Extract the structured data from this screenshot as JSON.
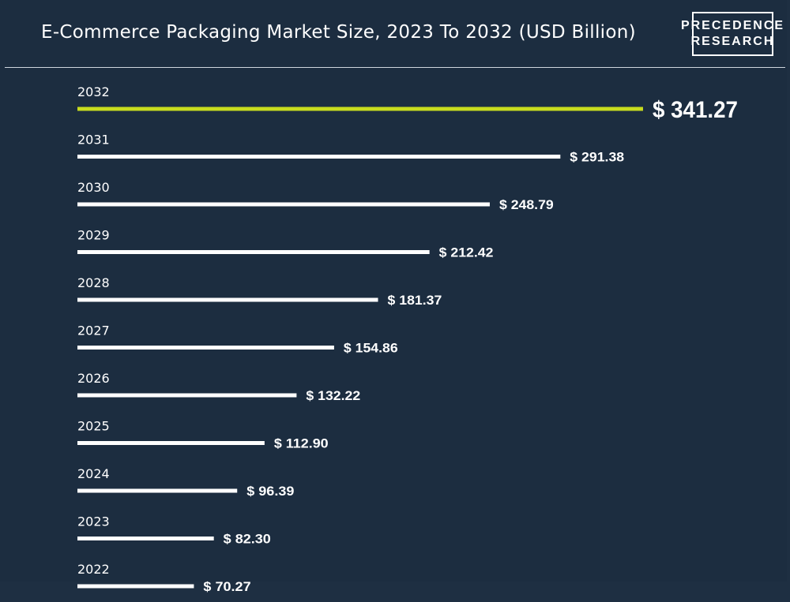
{
  "title": "E-Commerce Packaging Market Size, 2023 To 2032 (USD Billion)",
  "logo": {
    "line1": "PRECEDENCE",
    "line2": "RESEARCH"
  },
  "colors": {
    "background": "#1c2d40",
    "bar": "#ffffff",
    "highlight_bar": "#c8dc1e",
    "text": "#ffffff"
  },
  "chart_data": {
    "type": "bar",
    "orientation": "horizontal",
    "title": "E-Commerce Packaging Market Size, 2023 To 2032 (USD Billion)",
    "categories": [
      "2032",
      "2031",
      "2030",
      "2029",
      "2028",
      "2027",
      "2026",
      "2025",
      "2024",
      "2023",
      "2022"
    ],
    "values": [
      341.27,
      291.38,
      248.79,
      212.42,
      181.37,
      154.86,
      132.22,
      112.9,
      96.39,
      82.3,
      70.27
    ],
    "value_labels": [
      "$ 341.27",
      "$ 291.38",
      "$ 248.79",
      "$ 212.42",
      "$ 181.37",
      "$ 154.86",
      "$ 132.22",
      "$ 112.90",
      "$ 96.39",
      "$ 82.30",
      "$ 70.27"
    ],
    "highlight": "2032",
    "xlabel": "",
    "ylabel": ""
  }
}
